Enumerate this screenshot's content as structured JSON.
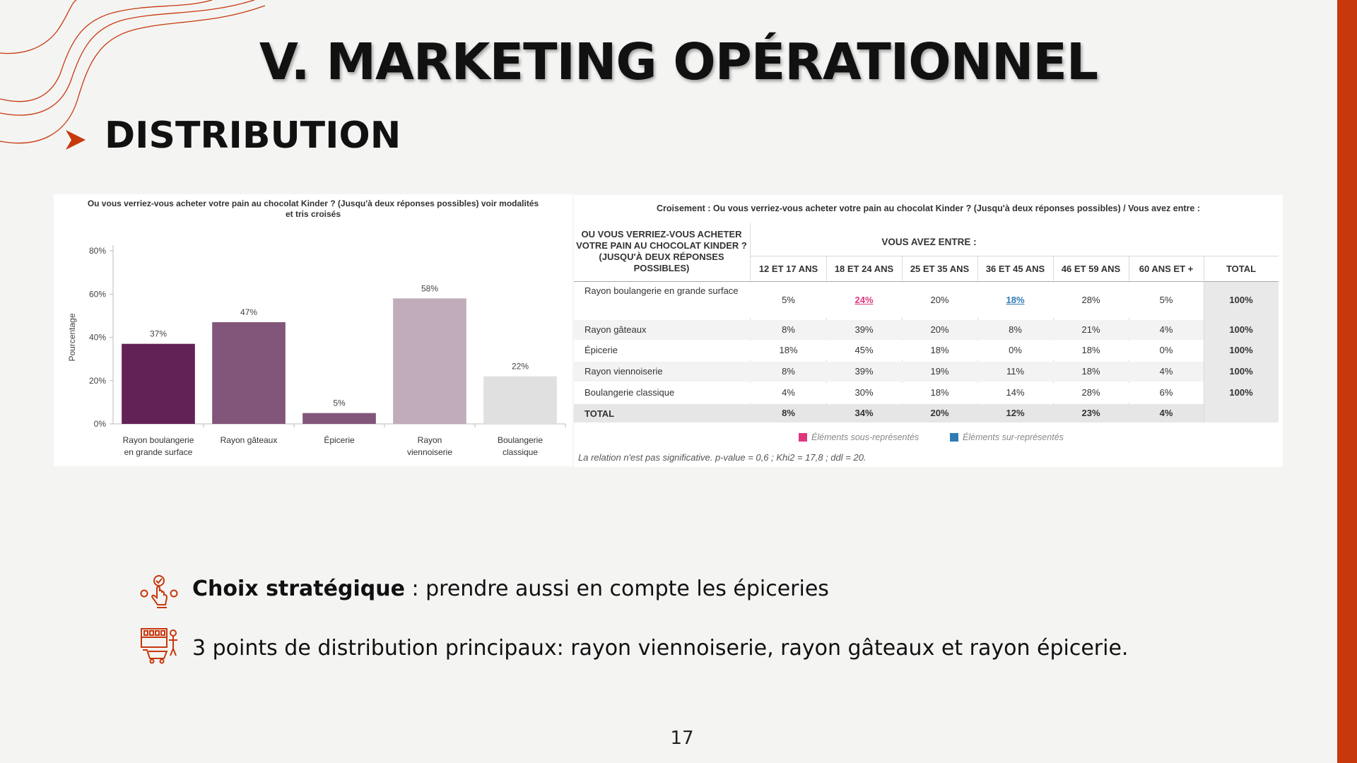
{
  "slide": {
    "title": "V. MARKETING OPÉRATIONNEL",
    "section": "DISTRIBUTION",
    "page_number": "17",
    "accent_color": "#c8380d"
  },
  "chart_data": [
    {
      "type": "bar",
      "title": "Ou vous verriez-vous acheter votre pain au chocolat Kinder ? (Jusqu'à deux réponses possibles) voir modalités et tris croisés",
      "categories": [
        [
          "Rayon boulangerie",
          "en grande surface"
        ],
        [
          "Rayon gâteaux"
        ],
        [
          "Épicerie"
        ],
        [
          "Rayon",
          "viennoiserie"
        ],
        [
          "Boulangerie",
          "classique"
        ]
      ],
      "values": [
        37,
        47,
        5,
        58,
        22
      ],
      "value_labels": [
        "37%",
        "47%",
        "5%",
        "58%",
        "22%"
      ],
      "colors": [
        "#632255",
        "#82557a",
        "#82557a",
        "#c0acbb",
        "#e0e0e0"
      ],
      "ylabel": "Pourcentage",
      "yticks": [
        "0%",
        "20%",
        "40%",
        "60%",
        "80%"
      ],
      "ylim": [
        0,
        80
      ],
      "grid": false,
      "legend": "none"
    },
    {
      "type": "table",
      "title": "Croisement : Ou vous verriez-vous acheter votre pain au chocolat Kinder ? (Jusqu'à deux réponses possibles) / Vous avez entre :",
      "row_header": "OU VOUS VERRIEZ-VOUS ACHETER VOTRE PAIN AU CHOCOLAT KINDER ? (JUSQU'À DEUX RÉPONSES POSSIBLES)",
      "column_group": "VOUS AVEZ ENTRE :",
      "columns": [
        "12 ET 17 ANS",
        "18 ET 24 ANS",
        "25 ET 35 ANS",
        "36 ET 45 ANS",
        "46 ET 59 ANS",
        "60 ANS ET +",
        "TOTAL"
      ],
      "rows": [
        {
          "label": "Rayon boulangerie en grande surface",
          "cells": [
            "5%",
            "24%",
            "20%",
            "18%",
            "28%",
            "5%",
            "100%"
          ]
        },
        {
          "label": "Rayon gâteaux",
          "cells": [
            "8%",
            "39%",
            "20%",
            "8%",
            "21%",
            "4%",
            "100%"
          ]
        },
        {
          "label": "Épicerie",
          "cells": [
            "18%",
            "45%",
            "18%",
            "0%",
            "18%",
            "0%",
            "100%"
          ]
        },
        {
          "label": "Rayon viennoiserie",
          "cells": [
            "8%",
            "39%",
            "19%",
            "11%",
            "18%",
            "4%",
            "100%"
          ]
        },
        {
          "label": "Boulangerie classique",
          "cells": [
            "4%",
            "30%",
            "18%",
            "14%",
            "28%",
            "6%",
            "100%"
          ]
        },
        {
          "label": "TOTAL",
          "cells": [
            "8%",
            "34%",
            "20%",
            "12%",
            "23%",
            "4%",
            ""
          ]
        }
      ],
      "legend": {
        "under": {
          "label": "Éléments sous-représentés",
          "color": "#e0367f"
        },
        "over": {
          "label": "Éléments sur-représentés",
          "color": "#2f7bb5"
        }
      },
      "footnote": "La relation n'est pas significative. p-value = 0,6 ; Khi2 = 17,8 ; ddl = 20."
    }
  ],
  "bullets": [
    {
      "icon": "hand-choice-icon",
      "bold": "Choix stratégique",
      "text": " : prendre aussi en compte les épiceries"
    },
    {
      "icon": "shopping-cart-shelf-icon",
      "bold": "",
      "text": "3 points de distribution principaux: rayon viennoiserie, rayon gâteaux et rayon épicerie."
    }
  ]
}
